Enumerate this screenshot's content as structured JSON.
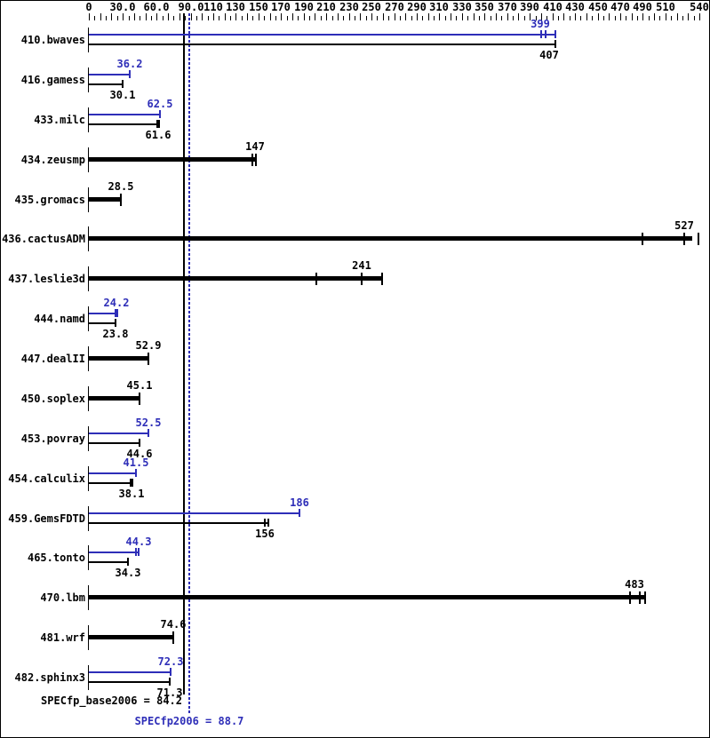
{
  "chart_data": {
    "type": "bar",
    "orientation": "horizontal",
    "title": "",
    "legend": "none",
    "grid": false,
    "colors": {
      "peak": "#2e2eb8",
      "base": "#000000",
      "background": "#ffffff",
      "border": "#000000"
    },
    "unit_axis": {
      "min": 0,
      "max": 540,
      "minor_step": 5,
      "major_step": 10,
      "labels": [
        {
          "value": 0,
          "text": "0"
        },
        {
          "value": 30,
          "text": "30.0"
        },
        {
          "value": 60,
          "text": "60.0"
        },
        {
          "value": 90,
          "text": "90.0"
        },
        {
          "value": 110,
          "text": "110"
        },
        {
          "value": 130,
          "text": "130"
        },
        {
          "value": 150,
          "text": "150"
        },
        {
          "value": 170,
          "text": "170"
        },
        {
          "value": 190,
          "text": "190"
        },
        {
          "value": 210,
          "text": "210"
        },
        {
          "value": 230,
          "text": "230"
        },
        {
          "value": 250,
          "text": "250"
        },
        {
          "value": 270,
          "text": "270"
        },
        {
          "value": 290,
          "text": "290"
        },
        {
          "value": 310,
          "text": "310"
        },
        {
          "value": 330,
          "text": "330"
        },
        {
          "value": 350,
          "text": "350"
        },
        {
          "value": 370,
          "text": "370"
        },
        {
          "value": 390,
          "text": "390"
        },
        {
          "value": 410,
          "text": "410"
        },
        {
          "value": 430,
          "text": "430"
        },
        {
          "value": 450,
          "text": "450"
        },
        {
          "value": 470,
          "text": "470"
        },
        {
          "value": 490,
          "text": "490"
        },
        {
          "value": 510,
          "text": "510"
        },
        {
          "value": 540,
          "text": "540"
        }
      ]
    },
    "benchmarks": [
      {
        "name": "410.bwaves",
        "peak": {
          "label": "399",
          "value": 399,
          "end": 413,
          "ticks": [
            400,
            404,
            413
          ]
        },
        "base": {
          "label": "407",
          "value": 407,
          "end": 413,
          "ticks": [
            413
          ]
        }
      },
      {
        "name": "416.gamess",
        "peak": {
          "label": "36.2",
          "value": 36.2,
          "end": 36.2,
          "ticks": [
            36.2
          ]
        },
        "base": {
          "label": "30.1",
          "value": 30.1,
          "end": 30.1,
          "ticks": [
            30.1
          ]
        }
      },
      {
        "name": "433.milc",
        "peak": {
          "label": "62.5",
          "value": 62.5,
          "end": 62.5,
          "ticks": [
            62.5
          ]
        },
        "base": {
          "label": "61.6",
          "value": 61.6,
          "end": 61.6,
          "ticks": [
            61.6
          ],
          "cap": true
        }
      },
      {
        "name": "434.zeusmp",
        "base": {
          "label": "147",
          "value": 147,
          "end": 148,
          "ticks": [
            145,
            148
          ],
          "thick": true
        }
      },
      {
        "name": "435.gromacs",
        "base": {
          "label": "28.5",
          "value": 28.5,
          "end": 28.5,
          "ticks": [
            28.5
          ],
          "thick": true
        }
      },
      {
        "name": "436.cactusADM",
        "base": {
          "label": "527",
          "value": 527,
          "end": 534,
          "ticks": [
            490,
            527,
            539
          ],
          "thick": true
        }
      },
      {
        "name": "437.leslie3d",
        "base": {
          "label": "241",
          "value": 241,
          "end": 259,
          "ticks": [
            201,
            241,
            259
          ],
          "thick": true
        }
      },
      {
        "name": "444.namd",
        "peak": {
          "label": "24.2",
          "value": 24.2,
          "end": 24.2,
          "ticks": [
            24.2
          ],
          "cap": true
        },
        "base": {
          "label": "23.8",
          "value": 23.8,
          "end": 23.8,
          "ticks": [
            23.8
          ]
        }
      },
      {
        "name": "447.dealII",
        "base": {
          "label": "52.9",
          "value": 52.9,
          "end": 52.9,
          "ticks": [
            52.9
          ],
          "thick": true
        }
      },
      {
        "name": "450.soplex",
        "base": {
          "label": "45.1",
          "value": 45.1,
          "end": 45.1,
          "ticks": [
            45.1
          ],
          "thick": true
        }
      },
      {
        "name": "453.povray",
        "peak": {
          "label": "52.5",
          "value": 52.5,
          "end": 52.5,
          "ticks": [
            52.5
          ]
        },
        "base": {
          "label": "44.6",
          "value": 44.6,
          "end": 44.6,
          "ticks": [
            44.6
          ]
        }
      },
      {
        "name": "454.calculix",
        "peak": {
          "label": "41.5",
          "value": 41.5,
          "end": 41.5,
          "ticks": [
            41.5
          ]
        },
        "base": {
          "label": "38.1",
          "value": 38.1,
          "end": 38.1,
          "ticks": [
            38.1
          ],
          "cap": true
        }
      },
      {
        "name": "459.GemsFDTD",
        "peak": {
          "label": "186",
          "value": 186,
          "end": 186,
          "ticks": [
            186
          ]
        },
        "base": {
          "label": "156",
          "value": 156,
          "end": 159,
          "ticks": [
            156,
            159
          ]
        }
      },
      {
        "name": "465.tonto",
        "peak": {
          "label": "44.3",
          "value": 44.3,
          "end": 44.3,
          "ticks": [
            42,
            44.3
          ]
        },
        "base": {
          "label": "34.3",
          "value": 34.3,
          "end": 34.3,
          "ticks": [
            34.3
          ]
        }
      },
      {
        "name": "470.lbm",
        "base": {
          "label": "483",
          "value": 483,
          "end": 492,
          "ticks": [
            479,
            487,
            492
          ],
          "thick": true
        }
      },
      {
        "name": "481.wrf",
        "base": {
          "label": "74.6",
          "value": 74.6,
          "end": 74.6,
          "ticks": [
            74.6
          ],
          "thick": true
        }
      },
      {
        "name": "482.sphinx3",
        "peak": {
          "label": "72.3",
          "value": 72.3,
          "end": 72.3,
          "ticks": [
            72.3
          ]
        },
        "base": {
          "label": "71.3",
          "value": 71.3,
          "end": 71.3,
          "ticks": [
            71.3
          ]
        }
      }
    ],
    "means": {
      "base": {
        "label": "SPECfp_base2006 = 84.2",
        "value": 84.2
      },
      "peak": {
        "label": "SPECfp2006 = 88.7",
        "value": 88.7
      }
    }
  }
}
